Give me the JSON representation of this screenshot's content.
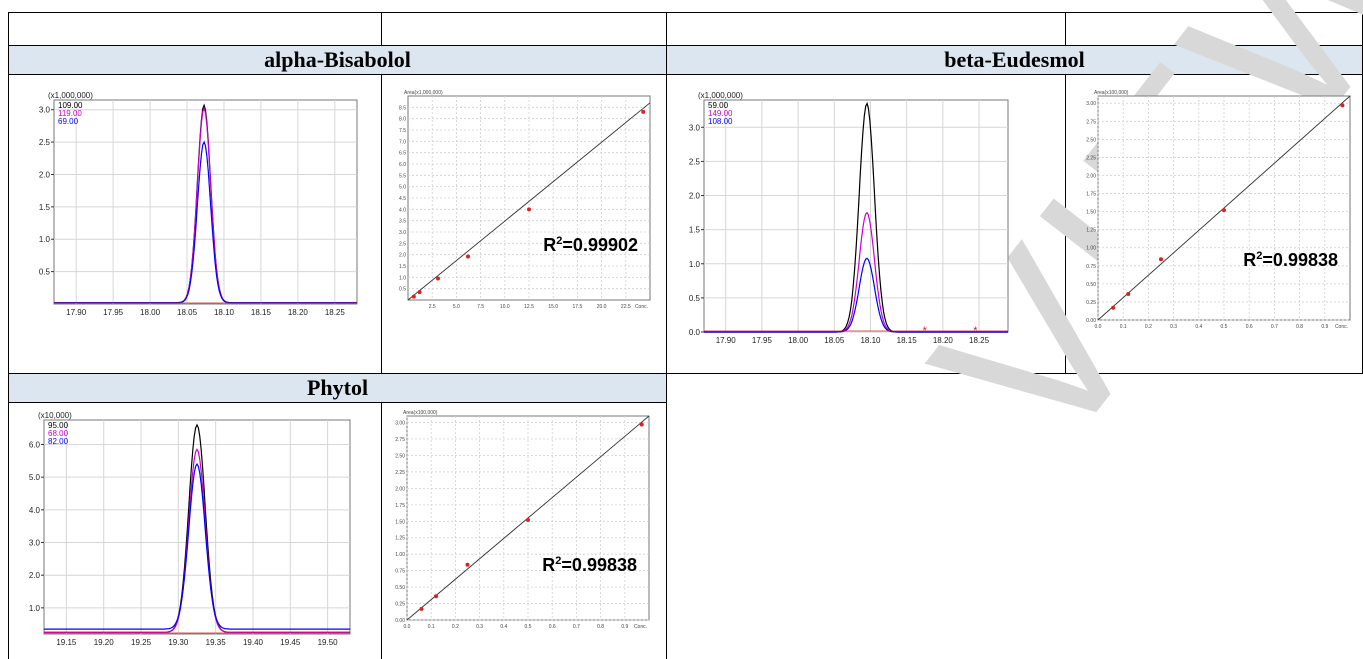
{
  "sections": [
    {
      "title": "alpha-Bisabolol"
    },
    {
      "title": "beta-Eudesmol"
    },
    {
      "title": "Phytol"
    }
  ],
  "watermark": "VIEW",
  "chart_data": [
    {
      "type": "line",
      "section": "alpha-Bisabolol",
      "scale_label": "(x1,000,000)",
      "xticks": [
        "17.90",
        "17.95",
        "18.00",
        "18.05",
        "18.10",
        "18.15",
        "18.20",
        "18.25"
      ],
      "yticks": [
        "0.5",
        "1.0",
        "1.5",
        "2.0",
        "2.5",
        "3.0"
      ],
      "xlim": [
        17.87,
        18.28
      ],
      "ylim": [
        0,
        3.15
      ],
      "peak_center": 18.073,
      "peak_sigma": 0.009,
      "series": [
        {
          "name": "109.00",
          "color": "#000000",
          "peak": 3.07,
          "baseline": 0.02
        },
        {
          "name": "119.00",
          "color": "#cc00cc",
          "peak": 3.02,
          "baseline": 0.02
        },
        {
          "name": "69.00",
          "color": "#0000ff",
          "peak": 2.5,
          "baseline": 0.02
        }
      ]
    },
    {
      "type": "scatter",
      "section": "alpha-Bisabolol",
      "ylabel": "Area(x1,000,000)",
      "xlabel": "Conc.",
      "xticks": [
        "2.5",
        "5.0",
        "7.5",
        "10.0",
        "12.5",
        "15.0",
        "17.5",
        "20.0",
        "22.5"
      ],
      "yticks": [
        "0.5",
        "1.0",
        "1.5",
        "2.0",
        "2.5",
        "3.0",
        "3.5",
        "4.0",
        "4.5",
        "5.0",
        "5.5",
        "6.0",
        "6.5",
        "7.0",
        "7.5",
        "8.0",
        "8.5"
      ],
      "xlim": [
        0,
        25
      ],
      "ylim": [
        0,
        9
      ],
      "points": [
        [
          0.6,
          0.15
        ],
        [
          1.2,
          0.35
        ],
        [
          3.1,
          0.95
        ],
        [
          6.2,
          1.92
        ],
        [
          12.5,
          4.0
        ],
        [
          24.3,
          8.3
        ]
      ],
      "fit": [
        [
          0,
          0.0
        ],
        [
          25,
          8.7
        ]
      ],
      "r2_label": "R",
      "r2_sup": "2",
      "r2_value": "=0.99902"
    },
    {
      "type": "line",
      "section": "beta-Eudesmol",
      "scale_label": "(x1,000,000)",
      "xticks": [
        "17.90",
        "17.95",
        "18.00",
        "18.05",
        "18.10",
        "18.15",
        "18.20",
        "18.25"
      ],
      "yticks": [
        "0.0",
        "0.5",
        "1.0",
        "1.5",
        "2.0",
        "2.5",
        "3.0"
      ],
      "xlim": [
        17.87,
        18.29
      ],
      "ylim": [
        0,
        3.4
      ],
      "peak_center": 18.095,
      "peak_sigma": 0.0105,
      "series": [
        {
          "name": "59.00",
          "color": "#000000",
          "peak": 3.35,
          "baseline": 0.0
        },
        {
          "name": "149.00",
          "color": "#cc00cc",
          "peak": 1.75,
          "baseline": 0.0
        },
        {
          "name": "108.00",
          "color": "#0000ff",
          "peak": 1.08,
          "baseline": 0.0
        }
      ],
      "markers_x": [
        18.175,
        18.245
      ]
    },
    {
      "type": "scatter",
      "section": "beta-Eudesmol",
      "ylabel": "Area(x100,000)",
      "xlabel": "Conc.",
      "xticks": [
        "0.0",
        "0.1",
        "0.2",
        "0.3",
        "0.4",
        "0.5",
        "0.6",
        "0.7",
        "0.8",
        "0.9"
      ],
      "yticks": [
        "0.00",
        "0.25",
        "0.50",
        "0.75",
        "1.00",
        "1.25",
        "1.50",
        "1.75",
        "2.00",
        "2.25",
        "2.50",
        "2.75",
        "3.00"
      ],
      "xlim": [
        0,
        1.0
      ],
      "ylim": [
        0,
        3.1
      ],
      "points": [
        [
          0.06,
          0.17
        ],
        [
          0.12,
          0.36
        ],
        [
          0.25,
          0.84
        ],
        [
          0.5,
          1.52
        ],
        [
          0.97,
          2.97
        ]
      ],
      "fit": [
        [
          0,
          0.0
        ],
        [
          1.0,
          3.1
        ]
      ],
      "r2_label": "R",
      "r2_sup": "2",
      "r2_value": "=0.99838"
    },
    {
      "type": "line",
      "section": "Phytol",
      "scale_label": "(x10,000)",
      "xticks": [
        "19.15",
        "19.20",
        "19.25",
        "19.30",
        "19.35",
        "19.40",
        "19.45",
        "19.50"
      ],
      "yticks": [
        "1.0",
        "2.0",
        "3.0",
        "4.0",
        "5.0",
        "6.0"
      ],
      "xlim": [
        19.12,
        19.53
      ],
      "ylim": [
        0.2,
        6.75
      ],
      "peak_center": 19.325,
      "peak_sigma": 0.011,
      "series": [
        {
          "name": "95.00",
          "color": "#000000",
          "peak": 6.6,
          "baseline": 0.25
        },
        {
          "name": "68.00",
          "color": "#cc00cc",
          "peak": 5.85,
          "baseline": 0.25
        },
        {
          "name": "82.00",
          "color": "#0000ff",
          "peak": 5.4,
          "baseline": 0.35
        }
      ]
    },
    {
      "type": "scatter",
      "section": "Phytol",
      "ylabel": "Area(x100,000)",
      "xlabel": "Conc.",
      "xticks": [
        "0.0",
        "0.1",
        "0.2",
        "0.3",
        "0.4",
        "0.5",
        "0.6",
        "0.7",
        "0.8",
        "0.9"
      ],
      "yticks": [
        "0.00",
        "0.25",
        "0.50",
        "0.75",
        "1.00",
        "1.25",
        "1.50",
        "1.75",
        "2.00",
        "2.25",
        "2.50",
        "2.75",
        "3.00"
      ],
      "xlim": [
        0,
        1.0
      ],
      "ylim": [
        0,
        3.1
      ],
      "points": [
        [
          0.06,
          0.17
        ],
        [
          0.12,
          0.36
        ],
        [
          0.25,
          0.84
        ],
        [
          0.5,
          1.52
        ],
        [
          0.97,
          2.97
        ]
      ],
      "fit": [
        [
          0,
          0.0
        ],
        [
          1.0,
          3.1
        ]
      ],
      "r2_label": "R",
      "r2_sup": "2",
      "r2_value": "=0.99838"
    }
  ]
}
